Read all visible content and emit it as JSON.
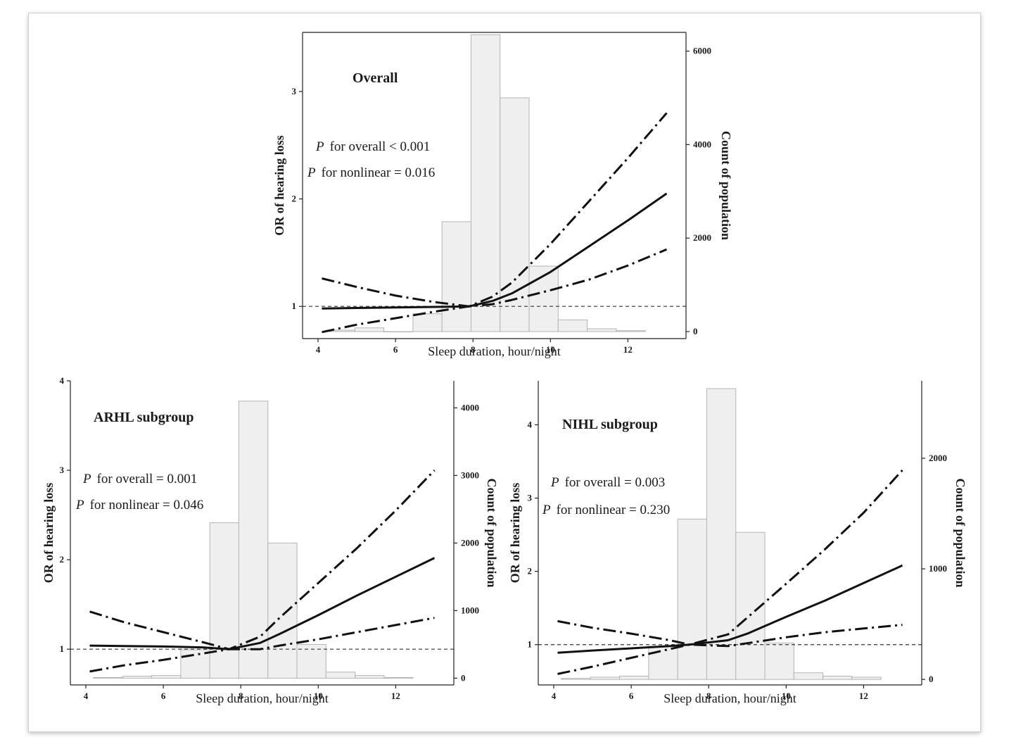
{
  "chart_data": [
    {
      "type": "line",
      "title": "Overall",
      "xlabel": "Sleep duration, hour/night",
      "ylabel": "OR of hearing loss",
      "y2label": "Count of population",
      "xlim": [
        3.6,
        13.5
      ],
      "ylim": [
        0.7,
        3.55
      ],
      "y2lim": [
        -150,
        6400
      ],
      "xticks": [
        "4",
        "6",
        "8",
        "10",
        "12"
      ],
      "yticks": [
        "1",
        "2",
        "3"
      ],
      "y2ticks": [
        "0",
        "2000",
        "4000",
        "6000"
      ],
      "stats": [
        {
          "p": "P",
          "rest": "for overall < 0.001"
        },
        {
          "p": "P",
          "rest": "for nonlinear = 0.016"
        }
      ],
      "reference_y": 1,
      "histogram": {
        "bin_edges": [
          4.2,
          4.95,
          5.7,
          6.45,
          7.2,
          7.95,
          8.7,
          9.45,
          10.2,
          10.95,
          11.7,
          12.45
        ],
        "counts": [
          30,
          80,
          0,
          380,
          2350,
          6350,
          5000,
          1400,
          250,
          60,
          20
        ]
      },
      "series": [
        {
          "style": "solid",
          "x": [
            4.1,
            5,
            6,
            7,
            7.9,
            8.5,
            9,
            10,
            11,
            12,
            13
          ],
          "y": [
            0.98,
            0.985,
            0.99,
            0.995,
            1.0,
            1.05,
            1.12,
            1.32,
            1.56,
            1.8,
            2.05
          ]
        },
        {
          "style": "dashdot",
          "x": [
            4.1,
            5,
            6,
            7,
            7.9,
            8.5,
            9,
            10,
            11,
            12,
            13
          ],
          "y": [
            1.26,
            1.18,
            1.1,
            1.04,
            1.0,
            1.09,
            1.22,
            1.58,
            1.98,
            2.38,
            2.8
          ]
        },
        {
          "style": "dashdot",
          "x": [
            4.1,
            5,
            6,
            7,
            7.9,
            8.5,
            9,
            10,
            11,
            12,
            13
          ],
          "y": [
            0.76,
            0.83,
            0.89,
            0.95,
            1.0,
            1.02,
            1.06,
            1.15,
            1.25,
            1.38,
            1.53
          ]
        }
      ]
    },
    {
      "type": "line",
      "title": "ARHL subgroup",
      "xlabel": "Sleep duration, hour/night",
      "ylabel": "OR of hearing loss",
      "y2label": "Count of population",
      "xlim": [
        3.6,
        13.5
      ],
      "ylim": [
        0.6,
        4.0
      ],
      "y2lim": [
        -100,
        4400
      ],
      "xticks": [
        "4",
        "6",
        "8",
        "10",
        "12"
      ],
      "yticks": [
        "1",
        "2",
        "3",
        "4"
      ],
      "y2ticks": [
        "0",
        "1000",
        "2000",
        "3000",
        "4000"
      ],
      "stats": [
        {
          "p": "P",
          "rest": "for overall = 0.001"
        },
        {
          "p": "P",
          "rest": "for nonlinear = 0.046"
        }
      ],
      "reference_y": 1,
      "histogram": {
        "bin_edges": [
          4.2,
          4.95,
          5.7,
          6.45,
          7.2,
          7.95,
          8.7,
          9.45,
          10.2,
          10.95,
          11.7,
          12.45
        ],
        "counts": [
          10,
          30,
          40,
          420,
          2300,
          4100,
          2000,
          500,
          90,
          40,
          10
        ]
      },
      "series": [
        {
          "style": "solid",
          "x": [
            4.1,
            5,
            6,
            7,
            7.7,
            8.5,
            9,
            10,
            11,
            12,
            13
          ],
          "y": [
            1.04,
            1.035,
            1.03,
            1.02,
            1.0,
            1.07,
            1.17,
            1.38,
            1.6,
            1.81,
            2.02
          ]
        },
        {
          "style": "dashdot",
          "x": [
            4.1,
            5,
            6,
            7,
            7.7,
            8.5,
            9,
            10,
            11,
            12,
            13
          ],
          "y": [
            1.42,
            1.3,
            1.19,
            1.08,
            1.0,
            1.14,
            1.35,
            1.74,
            2.13,
            2.55,
            3.0
          ]
        },
        {
          "style": "dashdot",
          "x": [
            4.1,
            5,
            6,
            7,
            7.7,
            8.5,
            9,
            10,
            11,
            12,
            13
          ],
          "y": [
            0.75,
            0.82,
            0.88,
            0.95,
            1.0,
            1.0,
            1.04,
            1.11,
            1.19,
            1.27,
            1.35
          ]
        }
      ]
    },
    {
      "type": "line",
      "title": "NIHL subgroup",
      "xlabel": "Sleep duration, hour/night",
      "ylabel": "OR of hearing loss",
      "y2label": "Count of population",
      "xlim": [
        3.6,
        13.5
      ],
      "ylim": [
        0.45,
        4.6
      ],
      "y2lim": [
        -50,
        2700
      ],
      "xticks": [
        "4",
        "6",
        "8",
        "10",
        "12"
      ],
      "yticks": [
        "1",
        "2",
        "3",
        "4"
      ],
      "y2ticks": [
        "0",
        "1000",
        "2000"
      ],
      "stats": [
        {
          "p": "P",
          "rest": "for overall = 0.003"
        },
        {
          "p": "P",
          "rest": "for nonlinear = 0.230"
        }
      ],
      "reference_y": 1,
      "histogram": {
        "bin_edges": [
          4.2,
          4.95,
          5.7,
          6.45,
          7.2,
          7.95,
          8.7,
          9.45,
          10.2,
          10.95,
          11.7,
          12.45
        ],
        "counts": [
          10,
          20,
          30,
          300,
          1450,
          2630,
          1330,
          330,
          60,
          30,
          20
        ]
      },
      "series": [
        {
          "style": "solid",
          "x": [
            4.1,
            5,
            6,
            7,
            7.5,
            8.5,
            9,
            10,
            11,
            12,
            13
          ],
          "y": [
            0.89,
            0.92,
            0.95,
            0.98,
            1.0,
            1.06,
            1.15,
            1.38,
            1.6,
            1.84,
            2.08
          ]
        },
        {
          "style": "dashdot",
          "x": [
            4.1,
            5,
            6,
            7,
            7.5,
            8.5,
            9,
            10,
            11,
            12,
            13
          ],
          "y": [
            1.32,
            1.23,
            1.15,
            1.06,
            1.0,
            1.14,
            1.37,
            1.83,
            2.3,
            2.8,
            3.38
          ]
        },
        {
          "style": "dashdot",
          "x": [
            4.1,
            5,
            6,
            7,
            7.5,
            8.5,
            9,
            10,
            11,
            12,
            13
          ],
          "y": [
            0.6,
            0.7,
            0.82,
            0.94,
            1.0,
            0.98,
            1.02,
            1.1,
            1.17,
            1.22,
            1.27
          ]
        }
      ]
    }
  ]
}
